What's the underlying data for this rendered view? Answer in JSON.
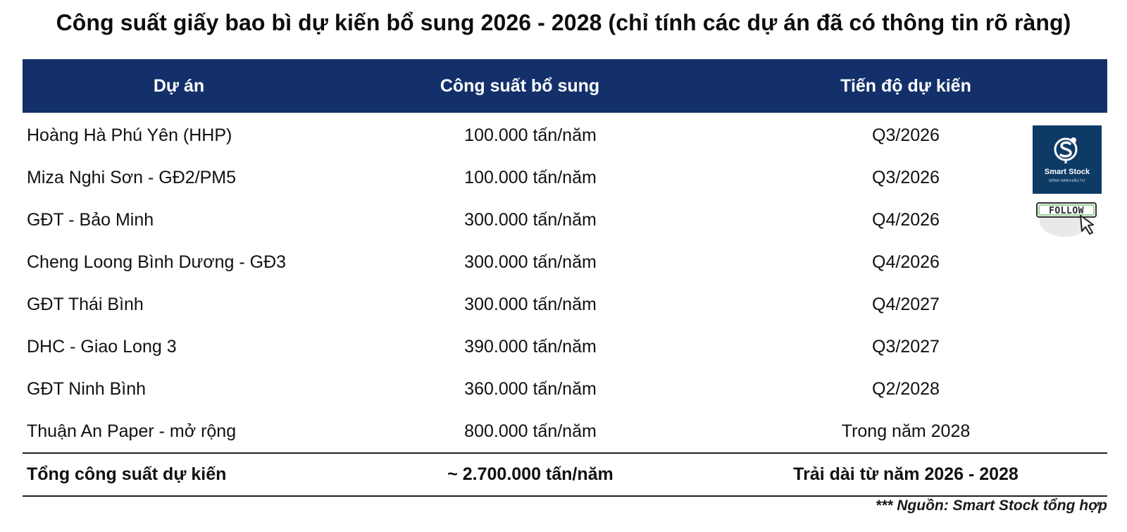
{
  "title": "Công suất giấy bao bì dự kiến bổ sung 2026 - 2028 (chỉ tính các dự án đã có thông tin rõ ràng)",
  "table": {
    "headers": [
      "Dự án",
      "Công suất bổ sung",
      "Tiến độ dự kiến"
    ],
    "rows": [
      {
        "project": "Hoàng Hà Phú Yên (HHP)",
        "capacity": "100.000 tấn/năm",
        "timeline": "Q3/2026"
      },
      {
        "project": "Miza Nghi Sơn - GĐ2/PM5",
        "capacity": "100.000 tấn/năm",
        "timeline": "Q3/2026"
      },
      {
        "project": "GĐT - Bảo Minh",
        "capacity": "300.000 tấn/năm",
        "timeline": "Q4/2026"
      },
      {
        "project": "Cheng Loong Bình Dương - GĐ3",
        "capacity": "300.000 tấn/năm",
        "timeline": "Q4/2026"
      },
      {
        "project": "GĐT Thái Bình",
        "capacity": "300.000 tấn/năm",
        "timeline": "Q4/2027"
      },
      {
        "project": "DHC - Giao Long 3",
        "capacity": "390.000 tấn/năm",
        "timeline": "Q3/2027"
      },
      {
        "project": "GĐT Ninh Bình",
        "capacity": "360.000 tấn/năm",
        "timeline": "Q2/2028"
      },
      {
        "project": "Thuận An Paper - mở rộng",
        "capacity": "800.000 tấn/năm",
        "timeline": "Trong năm 2028"
      }
    ],
    "total": {
      "project": "Tổng công suất dự kiến",
      "capacity": "~ 2.700.000 tấn/năm",
      "timeline": "Trải dài từ năm 2026 - 2028"
    }
  },
  "source": "*** Nguồn: Smart Stock tổng hợp",
  "logo": {
    "name": "Smart Stock",
    "tagline": "ĐỒNG HÀNH ĐẦU TƯ",
    "follow_label": "FOLLOW",
    "colors": {
      "background": "#0e3a66",
      "header": "#13306b"
    }
  }
}
